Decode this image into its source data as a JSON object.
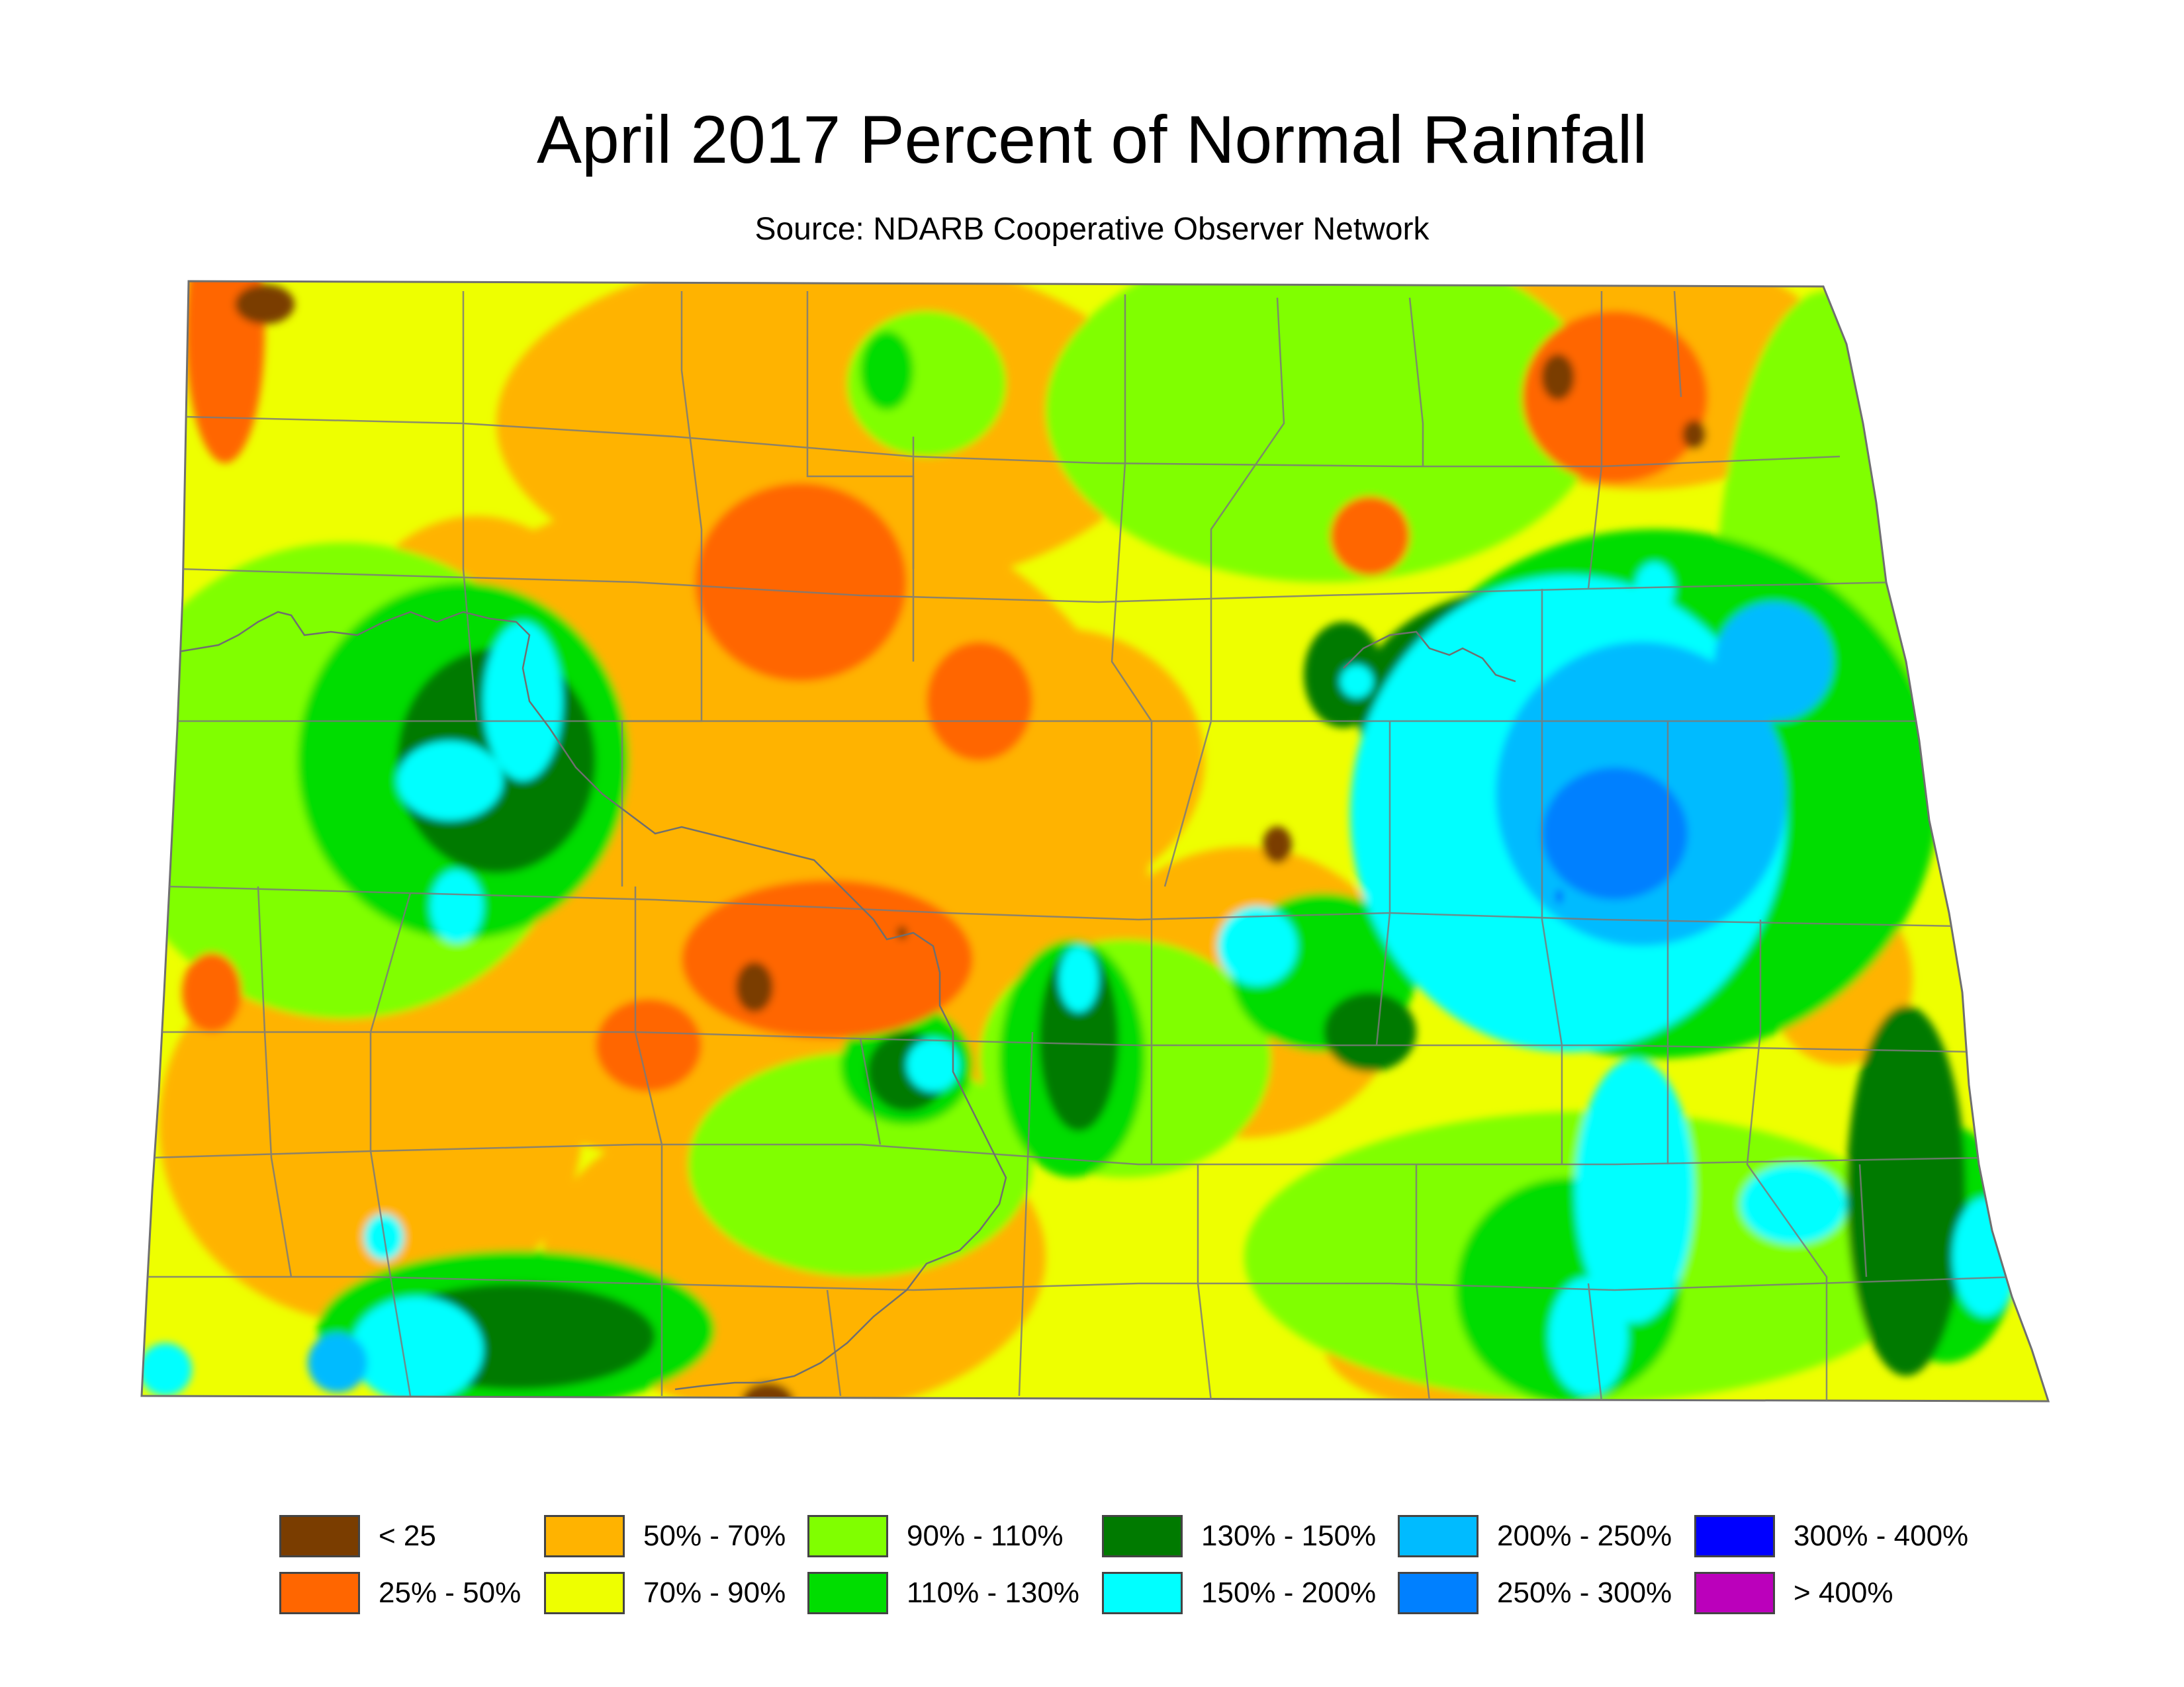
{
  "header": {
    "title": "April 2017 Percent of Normal Rainfall",
    "subtitle": "Source: NDARB Cooperative Observer Network"
  },
  "map": {
    "region": "North Dakota",
    "colors": {
      "lt25": "#7a3d00",
      "25_50": "#ff6600",
      "50_70": "#ffb300",
      "70_90": "#eeff00",
      "90_110": "#80ff00",
      "110_130": "#00dd00",
      "130_150": "#007a00",
      "150_200": "#00ffff",
      "200_250": "#00bbff",
      "250_300": "#0080ff",
      "300_400": "#0000ff",
      "gt400": "#bb00bb"
    }
  },
  "legend": {
    "items": [
      {
        "label": "< 25",
        "color": "#7a3d00"
      },
      {
        "label": "25% - 50%",
        "color": "#ff6600"
      },
      {
        "label": "50% - 70%",
        "color": "#ffb300"
      },
      {
        "label": "70% - 90%",
        "color": "#eeff00"
      },
      {
        "label": "90% - 110%",
        "color": "#80ff00"
      },
      {
        "label": "110% - 130%",
        "color": "#00dd00"
      },
      {
        "label": "130% - 150%",
        "color": "#007a00"
      },
      {
        "label": "150% - 200%",
        "color": "#00ffff"
      },
      {
        "label": "200% - 250%",
        "color": "#00bbff"
      },
      {
        "label": "250% - 300%",
        "color": "#0080ff"
      },
      {
        "label": "300% - 400%",
        "color": "#0000ff"
      },
      {
        "label": "> 400%",
        "color": "#bb00bb"
      }
    ]
  }
}
